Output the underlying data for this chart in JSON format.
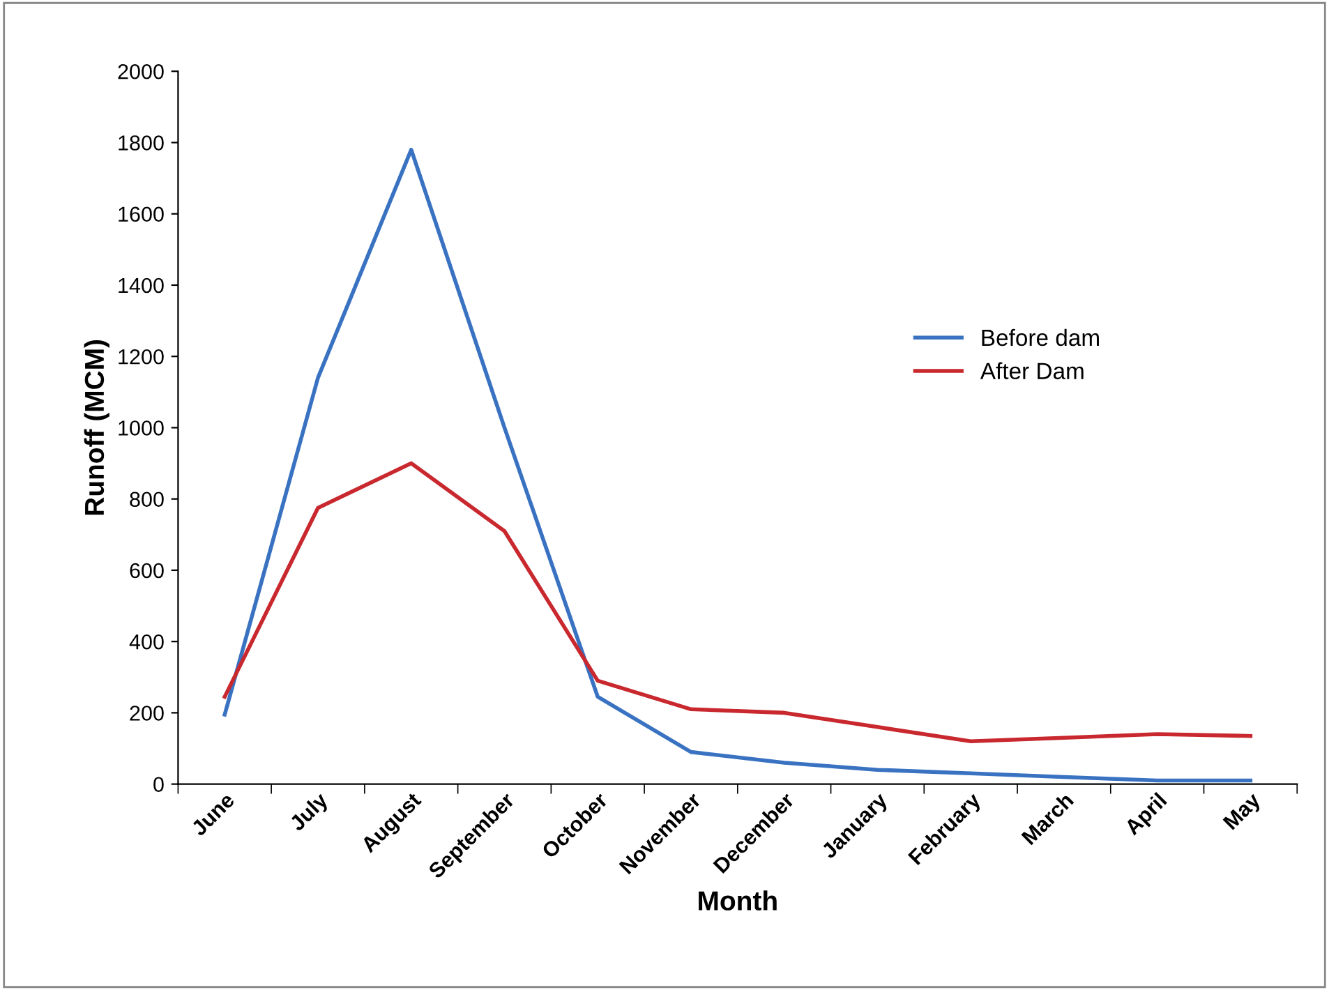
{
  "chart_data": {
    "type": "line",
    "xlabel": "Month",
    "ylabel": "Runoff (MCM)",
    "categories": [
      "June",
      "July",
      "August",
      "September",
      "October",
      "November",
      "December",
      "January",
      "February",
      "March",
      "April",
      "May"
    ],
    "series": [
      {
        "name": "Before dam",
        "color": "#3a72c2",
        "values": [
          195,
          1140,
          1780,
          1000,
          245,
          90,
          60,
          40,
          30,
          20,
          10,
          10
        ]
      },
      {
        "name": "After Dam",
        "color": "#c8282e",
        "values": [
          245,
          775,
          900,
          710,
          290,
          210,
          200,
          160,
          120,
          130,
          140,
          135
        ]
      }
    ],
    "ylim": [
      0,
      2000
    ],
    "yticks": [
      0,
      200,
      400,
      600,
      800,
      1000,
      1200,
      1400,
      1600,
      1800,
      2000
    ],
    "grid": false,
    "legend": "center right",
    "marker": "none",
    "line_style": "solid"
  }
}
